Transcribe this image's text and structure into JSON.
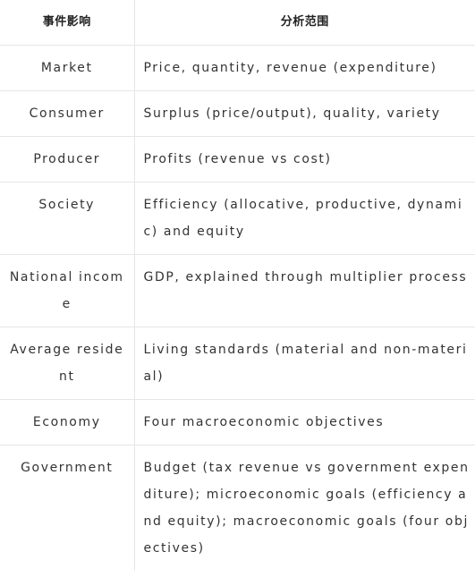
{
  "table": {
    "headers": [
      "事件影响",
      "分析范围"
    ],
    "rows": [
      {
        "impact": "Market",
        "scope": "Price, quantity, revenue (expenditure)"
      },
      {
        "impact": "Consumer",
        "scope": "Surplus (price/output), quality, variety"
      },
      {
        "impact": "Producer",
        "scope": "Profits (revenue vs cost)"
      },
      {
        "impact": "Society",
        "scope": "Efficiency (allocative, productive, dynamic) and equity"
      },
      {
        "impact": "National income",
        "scope": "GDP, explained through multiplier process"
      },
      {
        "impact": "Average resident",
        "scope": "Living standards (material and non-material)"
      },
      {
        "impact": "Economy",
        "scope": "Four macroeconomic objectives"
      },
      {
        "impact": "Government",
        "scope": "Budget (tax revenue vs government expenditure); microeconomic goals (efficiency and equity); macroeconomic goals (four objectives)"
      }
    ]
  }
}
